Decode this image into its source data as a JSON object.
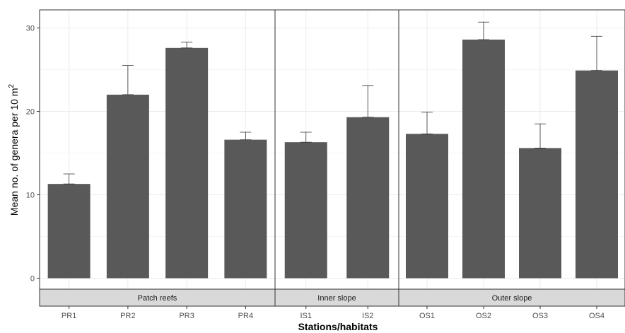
{
  "chart_data": {
    "type": "bar",
    "xlabel": "Stations/habitats",
    "ylabel": {
      "main": "Mean no. of genera per 10 m",
      "superscript": "2"
    },
    "ylim": [
      0,
      32
    ],
    "yticks": [
      0,
      10,
      20,
      30
    ],
    "grid": true,
    "error_bars": "upper",
    "bar_color": "#595959",
    "facets": [
      {
        "label": "Patch reefs",
        "categories": [
          "PR1",
          "PR2",
          "PR3",
          "PR4"
        ],
        "values": [
          11.3,
          22.0,
          27.6,
          16.6
        ],
        "error_upper": [
          12.5,
          25.5,
          28.3,
          17.5
        ]
      },
      {
        "label": "Inner slope",
        "categories": [
          "IS1",
          "IS2"
        ],
        "values": [
          16.3,
          19.3
        ],
        "error_upper": [
          17.5,
          23.1
        ]
      },
      {
        "label": "Outer slope",
        "categories": [
          "OS1",
          "OS2",
          "OS3",
          "OS4"
        ],
        "values": [
          17.3,
          28.6,
          15.6,
          24.9
        ],
        "error_upper": [
          19.9,
          30.7,
          18.5,
          29.0
        ]
      }
    ]
  }
}
